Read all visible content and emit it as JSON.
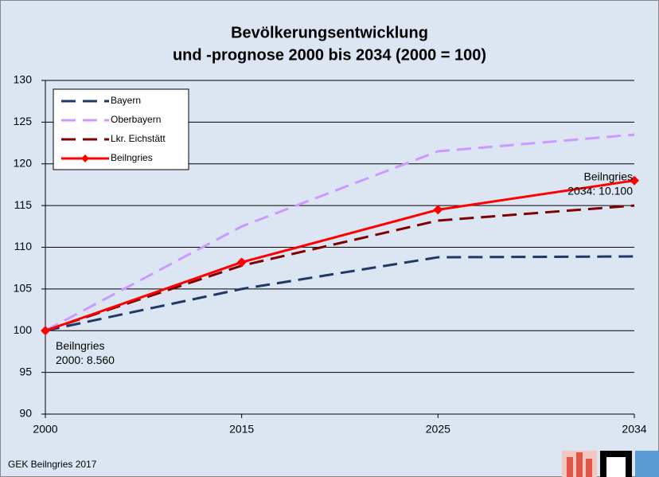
{
  "chart_data": {
    "type": "line",
    "title": [
      "Bevölkerungsentwicklung",
      "und -prognose 2000 bis 2034 (2000 = 100)"
    ],
    "categories": [
      "2000",
      "2015",
      "2025",
      "2034"
    ],
    "series": [
      {
        "name": "Bayern",
        "color": "#1f3864",
        "style": "dashed",
        "values": [
          100,
          105,
          108.8,
          108.9
        ]
      },
      {
        "name": "Oberbayern",
        "color": "#cc99ff",
        "style": "dashed",
        "values": [
          100,
          112.5,
          121.5,
          123.5
        ]
      },
      {
        "name": "Lkr. Eichstätt",
        "color": "#7f0000",
        "style": "dashed",
        "values": [
          100,
          107.8,
          113.2,
          115
        ]
      },
      {
        "name": "Beilngries",
        "color": "#ff0000",
        "style": "solid",
        "marker": "diamond",
        "values": [
          100,
          108.2,
          114.5,
          118
        ]
      }
    ],
    "ylim": [
      90,
      130
    ],
    "yticks": [
      90,
      95,
      100,
      105,
      110,
      115,
      120,
      125,
      130
    ],
    "grid": true,
    "legend": "upper left",
    "annotations": [
      [
        "Beilngries",
        "2000: 8.560"
      ],
      [
        "Beilngries",
        "2034: 10.100"
      ]
    ],
    "source": "GEK Beilngries 2017"
  }
}
